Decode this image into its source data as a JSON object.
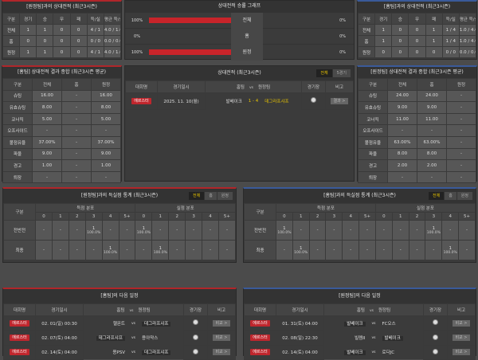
{
  "colors": {
    "home_accent": "#b0262a",
    "away_accent": "#3a5a9a",
    "bar": "#c8242a",
    "tab_active": "#e6c200"
  },
  "h2h_left": {
    "title": "[원정팀]과의 상대전적 (최근3시즌)",
    "headers": [
      "구분",
      "경기",
      "승",
      "무",
      "패",
      "득/실",
      "평균 득/실"
    ],
    "rows": [
      [
        "전체",
        "1",
        "1",
        "0",
        "0",
        "4 / 1",
        "4.0 / 1.0"
      ],
      [
        "홈",
        "0",
        "0",
        "0",
        "0",
        "0 / 0",
        "0.0 / 0.0"
      ],
      [
        "원정",
        "1",
        "1",
        "0",
        "0",
        "4 / 1",
        "4.0 / 1.0"
      ]
    ]
  },
  "h2h_right": {
    "title": "[홈팀]과의 상대전적 (최근3시즌)",
    "headers": [
      "구분",
      "경기",
      "승",
      "무",
      "패",
      "득/실",
      "평균 득/실"
    ],
    "rows": [
      [
        "전체",
        "1",
        "0",
        "0",
        "1",
        "1 / 4",
        "1.0 / 4.0"
      ],
      [
        "홈",
        "1",
        "0",
        "0",
        "1",
        "1 / 4",
        "1.0 / 4.0"
      ],
      [
        "원정",
        "0",
        "0",
        "0",
        "0",
        "0 / 0",
        "0.0 / 0.0"
      ]
    ]
  },
  "graph": {
    "title": "상대전적 승률 그래프",
    "rows": [
      {
        "left": "100%",
        "label": "전체",
        "right": "0%",
        "value": 100
      },
      {
        "left": "0%",
        "label": "홈",
        "right": "0%",
        "value": 0
      },
      {
        "left": "100%",
        "label": "원정",
        "right": "0%",
        "value": 100
      }
    ]
  },
  "sum_left": {
    "title": "[홈팀] 상대전적 결과 종합 (최근3시즌 평균)",
    "headers": [
      "구분",
      "전체",
      "홈",
      "원정"
    ],
    "rows": [
      [
        "슈팅",
        "16.00",
        "-",
        "16.00"
      ],
      [
        "유효슈팅",
        "8.00",
        "-",
        "8.00"
      ],
      [
        "코너킥",
        "5.00",
        "-",
        "5.00"
      ],
      [
        "오프사이드",
        "-",
        "-",
        "-"
      ],
      [
        "볼점유율",
        "37.00%",
        "-",
        "37.00%"
      ],
      [
        "파울",
        "9.00",
        "-",
        "9.00"
      ],
      [
        "경고",
        "1.00",
        "-",
        "1.00"
      ],
      [
        "퇴장",
        "-",
        "-",
        "-"
      ]
    ]
  },
  "sum_right": {
    "title": "[원정팀] 상대전적 결과 종합 (최근3시즌 평균)",
    "headers": [
      "구분",
      "전체",
      "홈",
      "원정"
    ],
    "rows": [
      [
        "슈팅",
        "24.00",
        "24.00",
        "-"
      ],
      [
        "유효슈팅",
        "9.00",
        "9.00",
        "-"
      ],
      [
        "코너킥",
        "11.00",
        "11.00",
        "-"
      ],
      [
        "오프사이드",
        "-",
        "-",
        "-"
      ],
      [
        "볼점유율",
        "63.00%",
        "63.00%",
        "-"
      ],
      [
        "파울",
        "8.00",
        "8.00",
        "-"
      ],
      [
        "경고",
        "2.00",
        "2.00",
        "-"
      ],
      [
        "퇴장",
        "-",
        "-",
        "-"
      ]
    ]
  },
  "record": {
    "title": "상대전적 (최근3시즌)",
    "tabs": [
      "전체",
      "5경기"
    ],
    "headers": {
      "league": "대회명",
      "date": "경기일시",
      "home": "홈팀",
      "vs": "vs",
      "away": "원정팀",
      "venue": "경기장",
      "note": "비고"
    },
    "matches": [
      {
        "league": "에르스터",
        "date": "2025. 11. 10(월)",
        "home": "발베이크",
        "score": "1  -  4",
        "away": "데그라프샤프",
        "note": "결과 >"
      }
    ]
  },
  "goals_left": {
    "title": "[원정팀]과의 득실점 통계 (최근3시즌)",
    "tabs": [
      "전체",
      "홈",
      "원정"
    ],
    "col_label": "구분",
    "scored": "득점 분포",
    "conceded": "실점 분포",
    "buckets": [
      "0",
      "1",
      "2",
      "3",
      "4",
      "5+"
    ],
    "rows": [
      {
        "label": "전반전",
        "cells": [
          "-",
          "-",
          "-",
          "1|100.0%",
          "-",
          "-",
          "1|100.0%",
          "-",
          "-",
          "-",
          "-",
          "-"
        ]
      },
      {
        "label": "최종",
        "cells": [
          "-",
          "-",
          "-",
          "-",
          "1|100.0%",
          "-",
          "-",
          "1|100.0%",
          "-",
          "-",
          "-",
          "-"
        ]
      }
    ]
  },
  "goals_right": {
    "title": "[홈팀]과의 득실점 통계 (최근3시즌)",
    "tabs": [
      "전체",
      "홈",
      "원정"
    ],
    "col_label": "구분",
    "scored": "득점 분포",
    "conceded": "실점 분포",
    "buckets": [
      "0",
      "1",
      "2",
      "3",
      "4",
      "5+"
    ],
    "rows": [
      {
        "label": "전반전",
        "cells": [
          "1|100.0%",
          "-",
          "-",
          "-",
          "-",
          "-",
          "-",
          "-",
          "-",
          "1|100.0%",
          "-",
          "-"
        ]
      },
      {
        "label": "최종",
        "cells": [
          "-",
          "1|100.0%",
          "-",
          "-",
          "-",
          "-",
          "-",
          "-",
          "-",
          "-",
          "1|100.0%",
          "-"
        ]
      }
    ]
  },
  "next_left": {
    "title": "[홈팀]의 다음 일정",
    "headers": {
      "league": "대회명",
      "date": "경기일시",
      "home": "홈팀",
      "vs": "vs",
      "away": "원정팀",
      "venue": "경기장",
      "note": "비고"
    },
    "matches": [
      {
        "league": "에르스터",
        "date": "02. 01(일) 00:30",
        "home": "헬몬트",
        "away": "데그라프샤프",
        "hl": "away",
        "note": "비교 >"
      },
      {
        "league": "에르스터",
        "date": "02. 07(토) 04:00",
        "home": "데그라프샤프",
        "away": "용아약스",
        "hl": "home",
        "note": "비교 >"
      },
      {
        "league": "에르스터",
        "date": "02. 14(토) 04:00",
        "home": "용PSV",
        "away": "데그라프샤프",
        "hl": "away",
        "note": "비교 >"
      }
    ]
  },
  "next_right": {
    "title": "[원정팀]의 다음 일정",
    "headers": {
      "league": "대회명",
      "date": "경기일시",
      "home": "홈팀",
      "vs": "vs",
      "away": "원정팀",
      "venue": "경기장",
      "note": "비고"
    },
    "matches": [
      {
        "league": "에르스터",
        "date": "01. 31(토) 04:00",
        "home": "발베이크",
        "away": "FC오스",
        "hl": "home",
        "note": "비교 >"
      },
      {
        "league": "에르스터",
        "date": "02. 08(일) 22:30",
        "home": "빌렘II",
        "away": "발베이크",
        "hl": "away",
        "note": "비교 >"
      },
      {
        "league": "에르스터",
        "date": "02. 14(토) 04:00",
        "home": "발베이크",
        "away": "로다JC",
        "hl": "home",
        "note": "비교 >"
      }
    ]
  }
}
